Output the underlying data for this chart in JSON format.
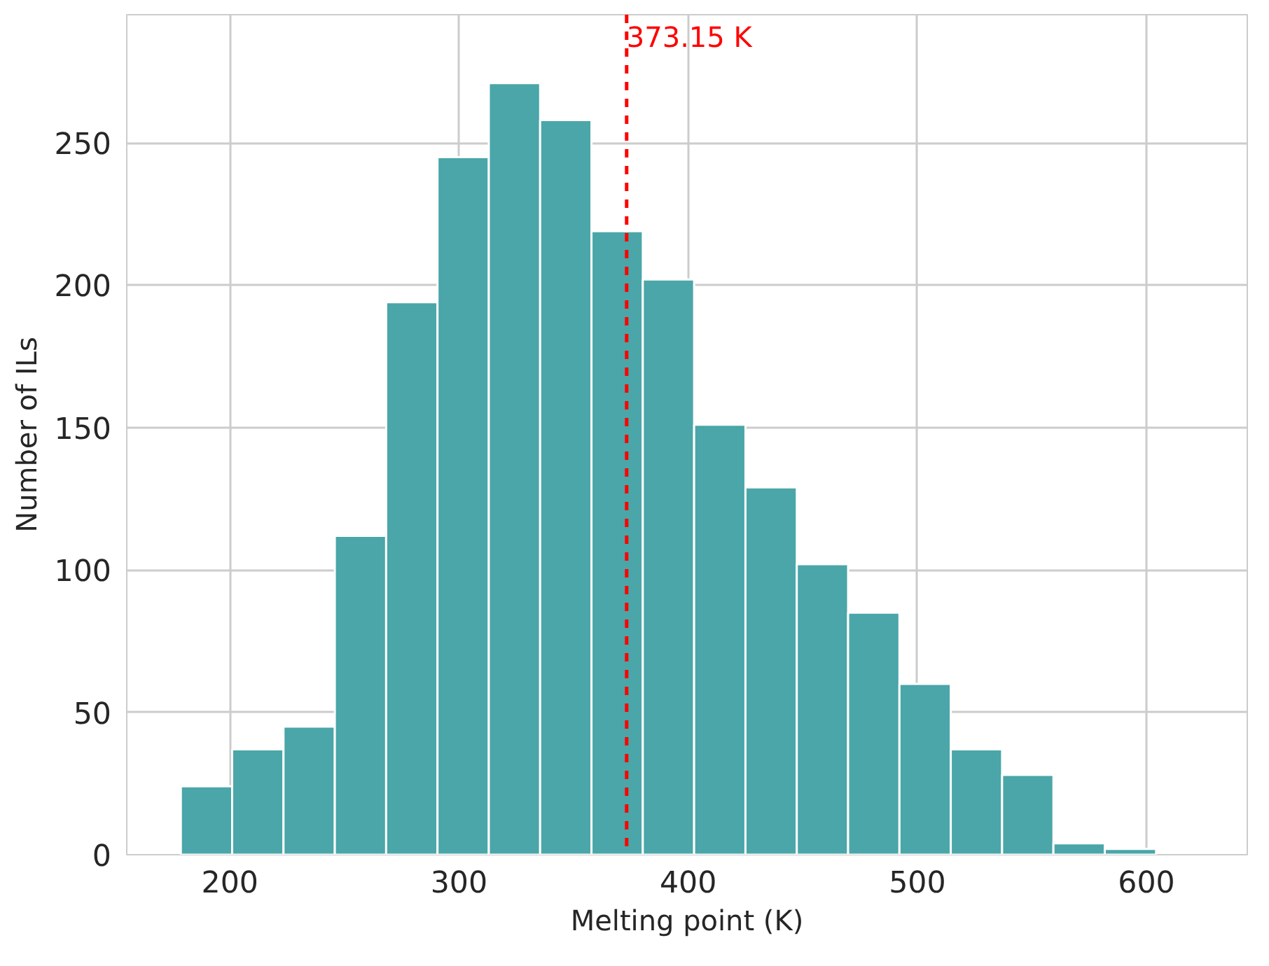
{
  "chart_data": {
    "type": "histogram",
    "xlabel": "Melting point (K)",
    "ylabel": "Number of ILs",
    "bins": [
      178.6,
      201.0,
      223.4,
      245.8,
      268.2,
      290.6,
      313.0,
      335.4,
      357.8,
      380.2,
      402.6,
      425.0,
      447.4,
      469.8,
      492.2,
      514.6,
      537.0,
      559.4,
      581.8,
      604.2
    ],
    "values": [
      24,
      37,
      45,
      112,
      194,
      245,
      271,
      258,
      219,
      202,
      151,
      129,
      102,
      85,
      60,
      37,
      28,
      4,
      2
    ],
    "color": "#4aa6a8",
    "xlim": [
      155,
      644
    ],
    "ylim": [
      0,
      295
    ],
    "xticks": [
      200,
      300,
      400,
      500,
      600
    ],
    "yticks": [
      0,
      50,
      100,
      150,
      200,
      250
    ],
    "grid": true,
    "ref_lines": [
      {
        "axis": "x",
        "value": 373.15,
        "label": "373.15 K",
        "color": "#ff0000",
        "line_style": "dashed"
      }
    ]
  }
}
